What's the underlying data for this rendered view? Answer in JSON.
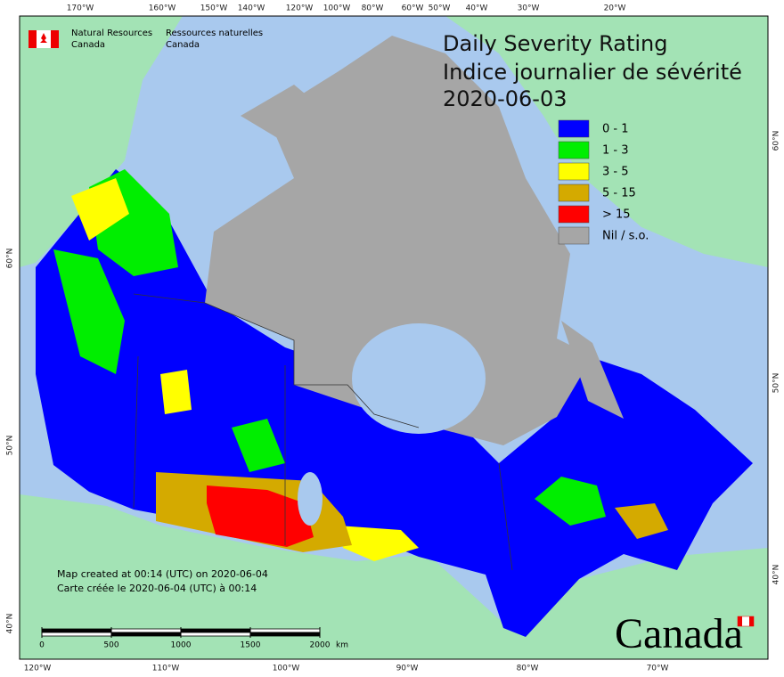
{
  "header": {
    "dept_en": [
      "Natural Resources",
      "Canada"
    ],
    "dept_fr": [
      "Ressources naturelles",
      "Canada"
    ]
  },
  "title": [
    "Daily Severity Rating",
    "Indice journalier de sévérité",
    "2020-06-03"
  ],
  "legend": [
    {
      "label": "0 - 1",
      "color": "#0000ff"
    },
    {
      "label": "1 - 3",
      "color": "#00ee00"
    },
    {
      "label": "3 - 5",
      "color": "#ffff00"
    },
    {
      "label": "5 - 15",
      "color": "#d4aa00"
    },
    {
      "label": "> 15",
      "color": "#ff0000"
    },
    {
      "label": "Nil / s.o.",
      "color": "#a6a6a6"
    }
  ],
  "graticule": {
    "top": [
      "170°W",
      "160°W",
      "150°W",
      "140°W",
      "120°W",
      "100°W",
      "80°W",
      "60°W",
      "50°W",
      "40°W",
      "30°W",
      "20°W"
    ],
    "bottom": [
      "120°W",
      "110°W",
      "100°W",
      "90°W",
      "80°W",
      "70°W"
    ],
    "left": [
      "60°N",
      "50°N",
      "40°N"
    ],
    "right": [
      "60°N",
      "50°N",
      "40°N"
    ]
  },
  "scale_bar": {
    "ticks": [
      0,
      500,
      1000,
      1500,
      2000
    ],
    "unit": "km"
  },
  "credits": [
    "Map created at 00:14 (UTC) on 2020-06-04",
    "Carte créée le 2020-06-04 (UTC) à 00:14"
  ],
  "wordmark": "Canada"
}
